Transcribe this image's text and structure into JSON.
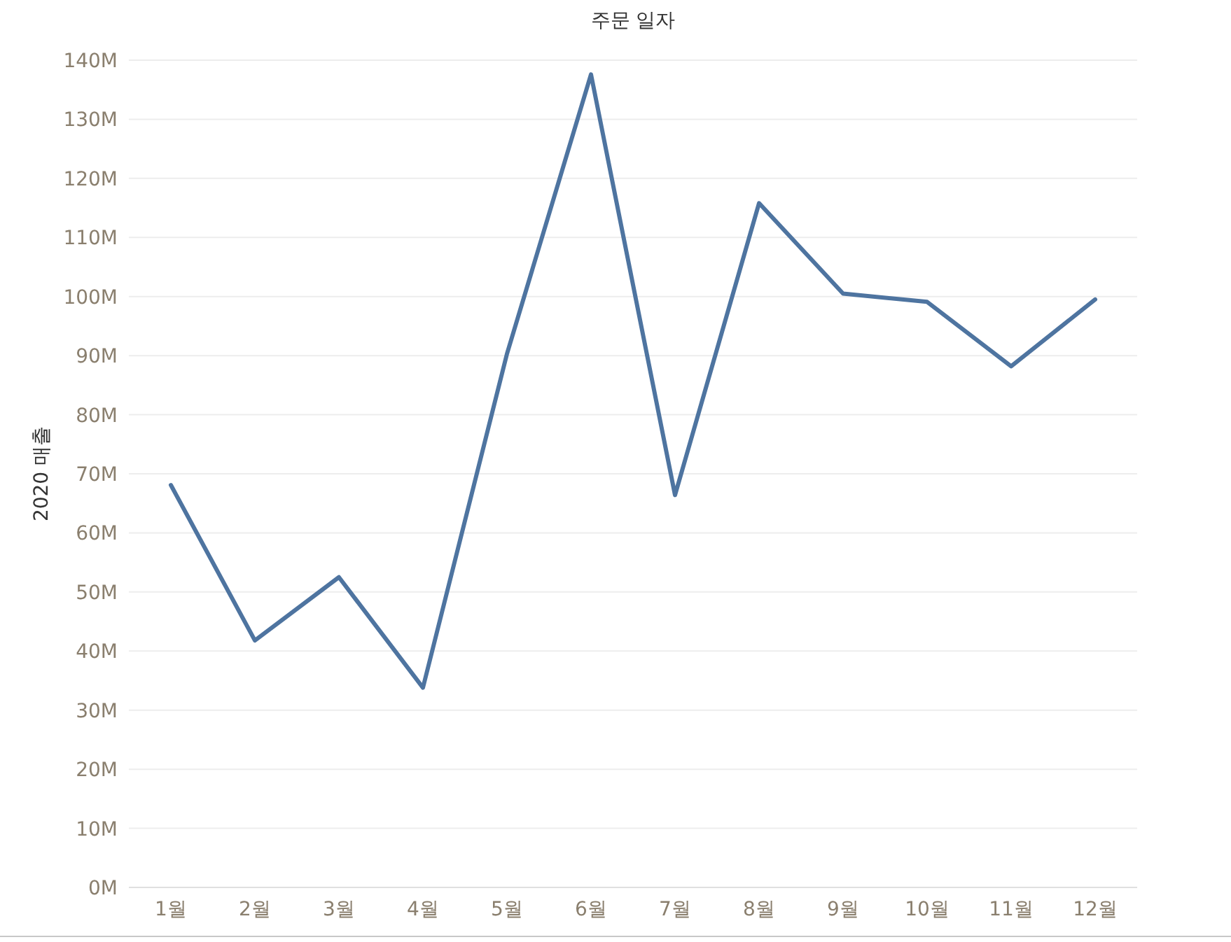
{
  "chart_data": {
    "type": "line",
    "title": "주문 일자",
    "ylabel": "2020 매출",
    "categories": [
      "1월",
      "2월",
      "3월",
      "4월",
      "5월",
      "6월",
      "7월",
      "8월",
      "9월",
      "10월",
      "11월",
      "12월"
    ],
    "series": [
      {
        "color": "#4e74a0",
        "values": [
          68.1,
          41.8,
          52.5,
          33.8,
          90.3,
          137.6,
          66.4,
          115.8,
          100.5,
          99.1,
          88.2,
          99.5
        ]
      }
    ],
    "ylim": [
      0,
      140
    ],
    "yticks": [
      {
        "value": 0,
        "label": "0M"
      },
      {
        "value": 10,
        "label": "10M"
      },
      {
        "value": 20,
        "label": "20M"
      },
      {
        "value": 30,
        "label": "30M"
      },
      {
        "value": 40,
        "label": "40M"
      },
      {
        "value": 50,
        "label": "50M"
      },
      {
        "value": 60,
        "label": "60M"
      },
      {
        "value": 70,
        "label": "70M"
      },
      {
        "value": 80,
        "label": "80M"
      },
      {
        "value": 90,
        "label": "90M"
      },
      {
        "value": 100,
        "label": "100M"
      },
      {
        "value": 110,
        "label": "110M"
      },
      {
        "value": 120,
        "label": "120M"
      },
      {
        "value": 130,
        "label": "130M"
      },
      {
        "value": 140,
        "label": "140M"
      }
    ],
    "grid": "y",
    "marker": "none",
    "line_style": "solid"
  }
}
